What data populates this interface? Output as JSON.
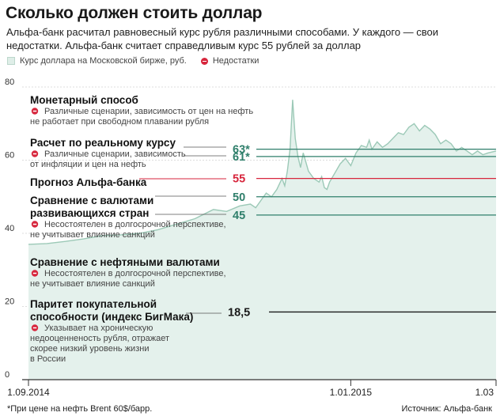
{
  "header": {
    "title": "Сколько должен стоить доллар",
    "subtitle": "Альфа-банк расчитал равновесный курс рубля различными способами. У каждого — свои недостатки. Альфа-банк считает справедливым курс 55 рублей за доллар"
  },
  "legend": {
    "series_label": "Курс доллара на Московской бирже, руб.",
    "minus_label": "Недостатки"
  },
  "colors": {
    "area_fill": "#e4f1ec",
    "area_line": "#9cc9b7",
    "green": "#2f7f6b",
    "red": "#d7263d",
    "dark": "#1a1a1a",
    "grid": "#dddddd"
  },
  "chart_data": {
    "type": "area",
    "title": "Сколько должен стоить доллар",
    "ylabel": "",
    "xlabel": "",
    "ylim": [
      0,
      80
    ],
    "yticks": [
      0,
      20,
      40,
      60,
      80
    ],
    "xlim": [
      0,
      177
    ],
    "xticks": [
      {
        "day": 0,
        "label": "1.09.2014"
      },
      {
        "day": 122,
        "label": "1.01.2015"
      },
      {
        "day": 177,
        "label": "1.03"
      }
    ],
    "series": [
      {
        "name": "Курс доллара на Московской бирже, руб.",
        "points": [
          [
            0,
            37
          ],
          [
            7,
            37.2
          ],
          [
            14,
            37.8
          ],
          [
            21,
            38.5
          ],
          [
            28,
            39.4
          ],
          [
            35,
            39.6
          ],
          [
            42,
            40.0
          ],
          [
            49,
            41.0
          ],
          [
            56,
            42.5
          ],
          [
            63,
            44.0
          ],
          [
            70,
            46.5
          ],
          [
            75,
            46.0
          ],
          [
            80,
            47.5
          ],
          [
            84,
            48.0
          ],
          [
            86,
            47.0
          ],
          [
            88,
            49.0
          ],
          [
            90,
            51.0
          ],
          [
            92,
            50.0
          ],
          [
            94,
            52.0
          ],
          [
            96,
            55.0
          ],
          [
            97,
            53.0
          ],
          [
            98,
            57.0
          ],
          [
            99,
            63.0
          ],
          [
            100,
            76.5
          ],
          [
            101,
            66.0
          ],
          [
            102,
            61.0
          ],
          [
            103,
            58.0
          ],
          [
            104,
            62.0
          ],
          [
            105,
            59.5
          ],
          [
            106,
            57.0
          ],
          [
            108,
            55.0
          ],
          [
            110,
            54.0
          ],
          [
            111,
            55.5
          ],
          [
            112,
            52.5
          ],
          [
            113,
            52.0
          ],
          [
            114,
            54.0
          ],
          [
            116,
            56.5
          ],
          [
            118,
            59.0
          ],
          [
            120,
            60.5
          ],
          [
            122,
            58.5
          ],
          [
            124,
            62.0
          ],
          [
            126,
            64.0
          ],
          [
            128,
            63.5
          ],
          [
            129,
            65.5
          ],
          [
            130,
            63.0
          ],
          [
            132,
            65.0
          ],
          [
            134,
            63.5
          ],
          [
            136,
            64.5
          ],
          [
            138,
            66.0
          ],
          [
            140,
            67.5
          ],
          [
            142,
            67.0
          ],
          [
            144,
            69.0
          ],
          [
            146,
            70.0
          ],
          [
            148,
            68.0
          ],
          [
            150,
            69.5
          ],
          [
            152,
            68.5
          ],
          [
            154,
            67.0
          ],
          [
            156,
            64.5
          ],
          [
            158,
            65.5
          ],
          [
            160,
            64.5
          ],
          [
            162,
            62.5
          ],
          [
            164,
            63.5
          ],
          [
            166,
            62.5
          ],
          [
            168,
            61.5
          ],
          [
            170,
            62.5
          ],
          [
            172,
            61.5
          ],
          [
            174,
            62.0
          ],
          [
            177,
            62.5
          ]
        ]
      }
    ],
    "estimates": [
      {
        "name": "Монетарный способ",
        "value": 63,
        "label": "63*",
        "drawn": "green",
        "shown_line_from_day": 103
      },
      {
        "name": "Расчет по реальному курсу",
        "value": 61,
        "label": "61*",
        "drawn": "green",
        "shown_line_from_day": 103
      },
      {
        "name": "Прогноз Альфа-банка",
        "value": 55,
        "label": "55",
        "drawn": "red",
        "shown_line_from_day": 103
      },
      {
        "name": "Сравнение с валютами развивающихся стран",
        "value": 50,
        "label": "50",
        "drawn": "green",
        "shown_line_from_day": 103
      },
      {
        "name": "Сравнение с нефтяными валютами",
        "value": 45,
        "label": "45",
        "drawn": "green",
        "shown_line_from_day": 103
      },
      {
        "name": "Паритет покупательной способности (индекс БигМака)",
        "value": 18.5,
        "label": "18,5",
        "drawn": "dark",
        "shown_line_from_day": 97
      }
    ]
  },
  "annotations": [
    {
      "title": "Монетарный способ",
      "text": "Различные сценарии, зависимость от цен на нефть не работает при свободном плавании рубля"
    },
    {
      "title": "Расчет по реальному курсу",
      "text": "Различные сценарии, зависимость от инфляции и цен на нефть"
    },
    {
      "title": "Прогноз Альфа-банка",
      "text": ""
    },
    {
      "title": "Сравнение с валютами развивающихся стран",
      "text": "Несостоятелен в долгосрочной перспективе, не учитывает влияние санкций"
    },
    {
      "title": "Сравнение с нефтяными валютами",
      "text": "Несостоятелен в долгосрочной перспективе, не учитывает влияние санкций"
    },
    {
      "title": "Паритет покупательной способности (индекс БигМака)",
      "text": "Указывает на хроническую недооценненость рубля, отражает скорее низкий уровень жизни в России"
    }
  ],
  "annotation_lines": [
    [
      "Монетарный способ"
    ],
    [
      "Расчет по реальному курсу"
    ],
    [
      "Прогноз Альфа-банка"
    ],
    [
      "Сравнение с валютами",
      "развивающихся стран"
    ],
    [
      "Сравнение с нефтяными валютами"
    ],
    [
      "Паритет покупательной",
      "способности (индекс БигМака)"
    ]
  ],
  "annotation_text_lines": [
    [
      "Различные сценарии, зависимость от цен на нефть",
      "не работает при свободном плавании рубля"
    ],
    [
      "Различные сценарии, зависимость",
      "от инфляции и цен на нефть"
    ],
    [],
    [
      "Несостоятелен в долгосрочной перспективе,",
      "не учитывает влияние санкций"
    ],
    [
      "Несостоятелен в долгосрочной перспективе,",
      "не учитывает влияние санкций"
    ],
    [
      "Указывает на хроническую",
      "недооценненость рубля, отражает",
      "скорее низкий уровень жизни",
      "в России"
    ]
  ],
  "footer": {
    "note": "*При цене на нефть Brent 60$/барр.",
    "source": "Источник: Альфа-банк"
  }
}
